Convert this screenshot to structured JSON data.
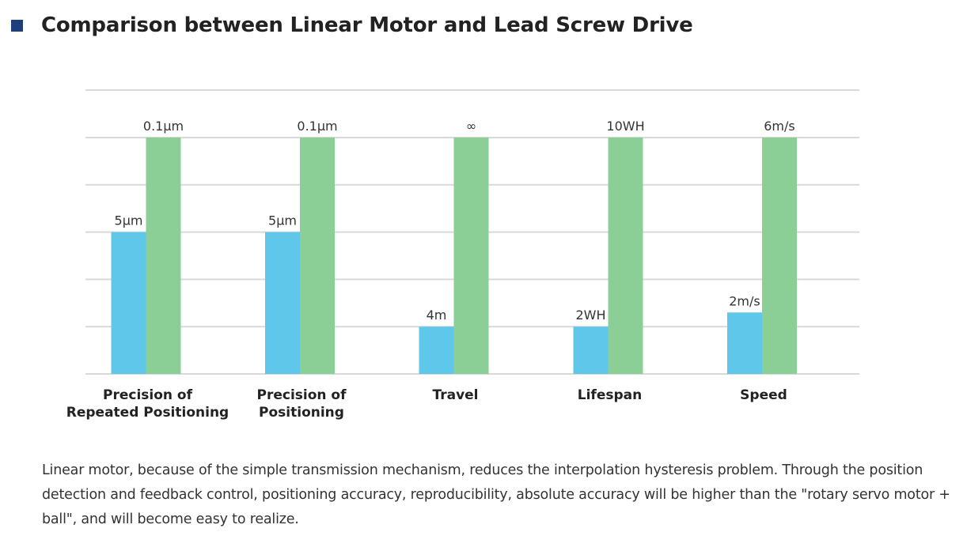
{
  "section": {
    "title": "Comparison between Linear Motor and Lead Screw Drive",
    "icon": "square-bullet-icon"
  },
  "chart_data": {
    "type": "bar",
    "title": "",
    "xlabel": "",
    "ylabel": "",
    "categories": [
      "Precision of\nRepeated Positioning",
      "Precision of\nPositioning",
      "Travel",
      "Lifespan",
      "Speed"
    ],
    "series": [
      {
        "color": "#5fc8ea",
        "relative_levels": [
          0.6,
          0.6,
          0.2,
          0.2,
          0.26
        ],
        "labels": [
          "5µm",
          "5µm",
          "4m",
          "2WH",
          "2m/s"
        ]
      },
      {
        "color": "#8bcf97",
        "relative_levels": [
          1.0,
          1.0,
          1.0,
          1.0,
          1.0
        ],
        "labels": [
          "0.1µm",
          "0.1µm",
          "∞",
          "10WH",
          "6m/s"
        ]
      }
    ],
    "gridline_count": 6,
    "legend": "none",
    "y_axis_labels": "none"
  },
  "description": "Linear motor, because of the simple transmission mechanism, reduces the interpolation hysteresis problem. Through the position detection and feedback control, positioning accuracy, reproducibility, absolute accuracy will be higher than the \"rotary servo motor + ball\", and will become easy to realize."
}
